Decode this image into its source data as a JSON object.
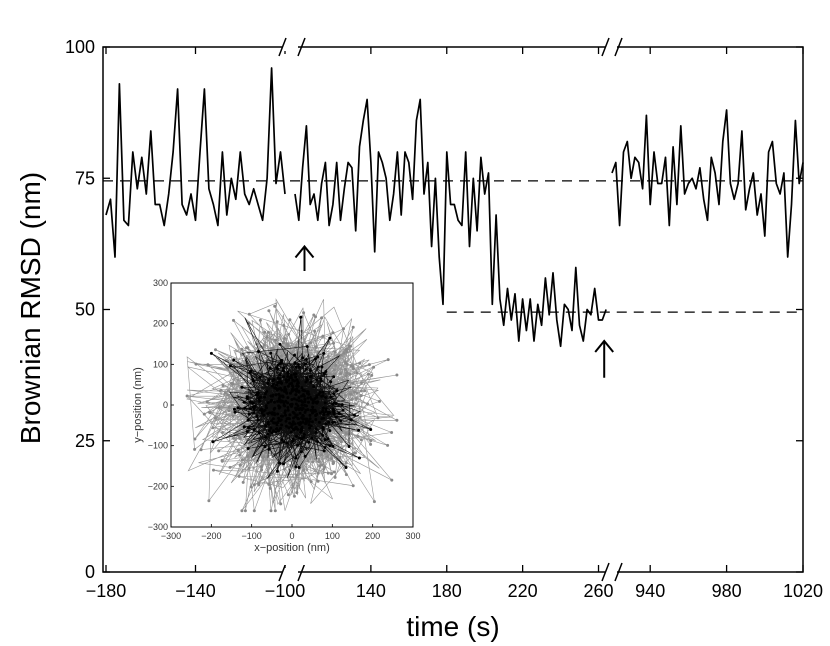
{
  "chart_data": [
    {
      "type": "line",
      "title": "",
      "xlabel": "time (s)",
      "ylabel": "Brownian RMSD (nm)",
      "ylim": [
        0,
        100
      ],
      "yticks": [
        0,
        25,
        50,
        75,
        100
      ],
      "ytick_labels": [
        "0",
        "25",
        "50",
        "75",
        "100"
      ],
      "x_segments": [
        {
          "range": [
            -180,
            -100
          ],
          "ticks": [
            -180,
            -140,
            -100
          ],
          "tick_labels": [
            "−180",
            "−140",
            "−100"
          ]
        },
        {
          "range": [
            100,
            265
          ],
          "ticks": [
            140,
            180,
            220,
            260
          ],
          "tick_labels": [
            "140",
            "180",
            "220",
            "260"
          ]
        },
        {
          "range": [
            920,
            1020
          ],
          "ticks": [
            940,
            980,
            1020
          ],
          "tick_labels": [
            "940",
            "980",
            "1020"
          ]
        }
      ],
      "axis_breaks": [
        "between -100 and 100",
        "between 265 and 920"
      ],
      "reference_lines": [
        {
          "y": 74.5,
          "style": "dashed",
          "x_from": -180,
          "x_to": 1020
        },
        {
          "y": 49.5,
          "style": "dashed",
          "x_from": 180,
          "x_to": 1020
        }
      ],
      "annotations": [
        {
          "type": "up-arrow",
          "x": 105,
          "y_tip": 62,
          "y_base": 57
        },
        {
          "type": "up-arrow",
          "x": 263,
          "y_tip": 44,
          "y_base": 37
        }
      ],
      "series": [
        {
          "segment": 0,
          "x": [
            -180,
            -178,
            -176,
            -174,
            -172,
            -170,
            -168,
            -166,
            -164,
            -162,
            -160,
            -158,
            -156,
            -154,
            -152,
            -150,
            -148,
            -146,
            -144,
            -142,
            -140,
            -138,
            -136,
            -134,
            -132,
            -130,
            -128,
            -126,
            -124,
            -122,
            -120,
            -118,
            -116,
            -114,
            -112,
            -110,
            -108,
            -106,
            -104,
            -102,
            -100
          ],
          "y": [
            68,
            71,
            60,
            93,
            67,
            66,
            80,
            73,
            79,
            72,
            84,
            70,
            70,
            66,
            72,
            80,
            92,
            70,
            68,
            72,
            67,
            80,
            92,
            73,
            70,
            66,
            80,
            68,
            75,
            71,
            80,
            72,
            70,
            73,
            70,
            67,
            75,
            96,
            74,
            80,
            72
          ]
        },
        {
          "segment": 1,
          "x": [
            100,
            102,
            104,
            106,
            108,
            110,
            112,
            114,
            116,
            118,
            120,
            122,
            124,
            126,
            128,
            130,
            132,
            134,
            136,
            138,
            140,
            142,
            144,
            146,
            148,
            150,
            152,
            154,
            156,
            158,
            160,
            162,
            164,
            166,
            168,
            170,
            172,
            174,
            176,
            178,
            180,
            182,
            184,
            186,
            188,
            190,
            192,
            194,
            196,
            198,
            200,
            202,
            204,
            206,
            208,
            210,
            212,
            214,
            216,
            218,
            220,
            222,
            224,
            226,
            228,
            230,
            232,
            234,
            236,
            238,
            240,
            242,
            244,
            246,
            248,
            250,
            252,
            254,
            256,
            258,
            260,
            262,
            264
          ],
          "y": [
            72,
            67,
            77,
            85,
            70,
            72,
            67,
            74,
            78,
            66,
            70,
            78,
            67,
            73,
            78,
            77,
            65,
            81,
            86,
            90,
            78,
            61,
            80,
            78,
            75,
            67,
            72,
            80,
            68,
            80,
            78,
            71,
            86,
            90,
            72,
            78,
            62,
            75,
            60,
            51,
            80,
            70,
            70,
            67,
            66,
            80,
            62,
            75,
            65,
            79,
            72,
            76,
            51,
            68,
            52,
            47,
            54,
            48,
            53,
            44,
            52,
            46,
            52,
            44,
            51,
            47,
            56,
            49,
            57,
            48,
            43,
            51,
            50,
            46,
            58,
            47,
            44,
            50,
            49,
            54,
            48,
            48,
            50
          ]
        },
        {
          "segment": 2,
          "x": [
            920,
            922,
            924,
            926,
            928,
            930,
            932,
            934,
            936,
            938,
            940,
            942,
            944,
            946,
            948,
            950,
            952,
            954,
            956,
            958,
            960,
            962,
            964,
            966,
            968,
            970,
            972,
            974,
            976,
            978,
            980,
            982,
            984,
            986,
            988,
            990,
            992,
            994,
            996,
            998,
            1000,
            1002,
            1004,
            1006,
            1008,
            1010,
            1012,
            1014,
            1016,
            1018,
            1020
          ],
          "y": [
            76,
            78,
            66,
            80,
            82,
            75,
            79,
            78,
            73,
            87,
            70,
            80,
            74,
            74,
            79,
            66,
            81,
            70,
            85,
            72,
            74,
            75,
            73,
            77,
            71,
            67,
            79,
            76,
            70,
            82,
            88,
            74,
            71,
            74,
            84,
            69,
            73,
            76,
            68,
            72,
            64,
            80,
            82,
            74,
            72,
            76,
            60,
            70,
            86,
            74,
            78
          ]
        }
      ],
      "inset": {
        "type": "scatter",
        "xlabel": "x−position (nm)",
        "ylabel": "y−position (nm)",
        "xlim": [
          -300,
          300
        ],
        "ylim": [
          -300,
          300
        ],
        "xtick_labels": [
          "−300",
          "−200",
          "−100",
          "0",
          "100",
          "200",
          "300"
        ],
        "ytick_labels": [
          "300",
          "200",
          "100",
          "0",
          "−100",
          "−200",
          "−300"
        ],
        "series": [
          {
            "description": "gray trajectory",
            "color": "#8a8a8a",
            "radius_nm_approx": 200
          },
          {
            "description": "black trajectory",
            "color": "#000000",
            "radius_nm_approx": 130
          }
        ]
      }
    }
  ]
}
